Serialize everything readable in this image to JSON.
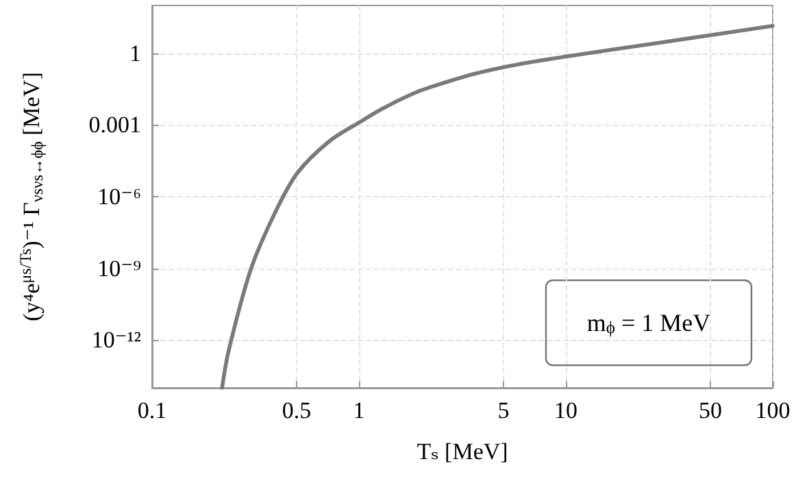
{
  "chart_data": {
    "type": "line",
    "xlabel": "Tₛ [MeV]",
    "ylabel": "(y⁴e$^{μs/Ts}$)⁻¹ Γ$_{νsνs↔ϕϕ}$ [MeV]",
    "annotations": [
      "m$_{ϕ}$ = 1 MeV"
    ],
    "log": "xy",
    "grid": true,
    "marker": "none",
    "line_style": "solid",
    "xlim": [
      0.1,
      100
    ],
    "xticks": [
      0.1,
      0.5,
      1,
      5,
      10,
      50,
      100
    ],
    "ylim": [
      1e-14,
      100
    ],
    "yticks": [
      {
        "value": 1e-12,
        "label": "10⁻¹²"
      },
      {
        "value": 1e-09,
        "label": "10⁻⁹"
      },
      {
        "value": 1e-06,
        "label": "10⁻⁶"
      },
      0.001,
      1
    ],
    "series": [
      {
        "color": "#7a7a7a",
        "x": [
          0.218,
          0.234,
          0.3,
          0.388,
          0.5,
          0.715,
          1.02,
          1.31,
          1.79,
          2.19,
          3.64,
          6.04,
          10,
          27.8,
          100
        ],
        "values": [
          1e-14,
          3.3e-13,
          9e-10,
          1.7e-07,
          9e-06,
          0.0002,
          0.0014,
          0.005,
          0.019,
          0.037,
          0.14,
          0.36,
          0.73,
          2.7,
          14
        ]
      }
    ]
  }
}
